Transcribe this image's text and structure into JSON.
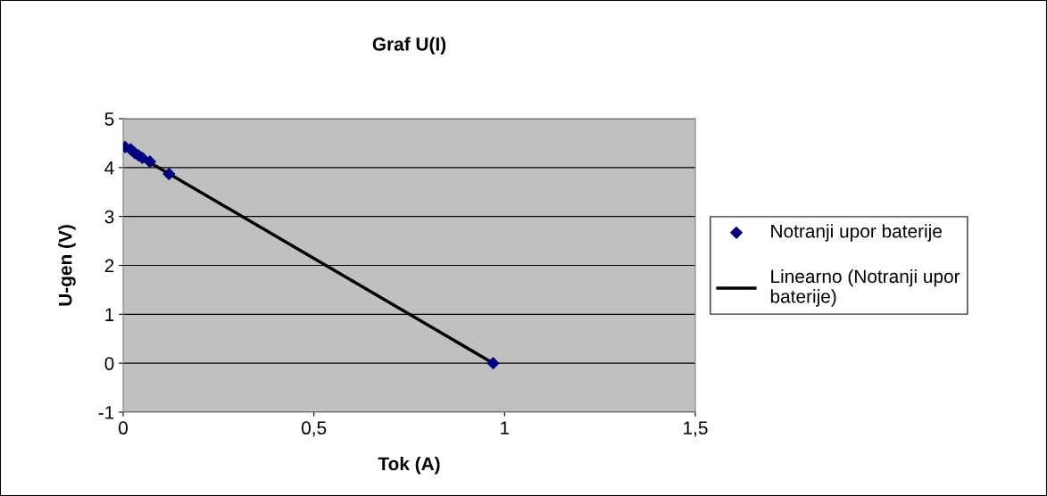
{
  "chart_data": {
    "type": "scatter",
    "title": "Graf U(I)",
    "xlabel": "Tok (A)",
    "ylabel": "U-gen (V)",
    "xlim": [
      0,
      1.5
    ],
    "xticks": [
      0,
      {
        "value": 0.5,
        "label": "0,5"
      },
      1,
      {
        "value": 1.5,
        "label": "1,5"
      }
    ],
    "ylim": [
      -1,
      5
    ],
    "yticks": [
      {
        "value": -1,
        "label": "-1"
      },
      0,
      1,
      2,
      3,
      4,
      5
    ],
    "grid": "y",
    "legend": "right",
    "series": [
      {
        "name": "Notranji upor baterije",
        "marker": "diamond",
        "color": "#000080",
        "x": [
          0.005,
          0.02,
          0.03,
          0.04,
          0.05,
          0.07,
          0.12,
          0.97
        ],
        "values": [
          4.42,
          4.37,
          4.3,
          4.25,
          4.2,
          4.12,
          3.87,
          0
        ]
      },
      {
        "name": "Linearno (Notranji upor baterije)",
        "type": "line",
        "color": "#000000",
        "x": [
          0.005,
          0.97
        ],
        "values": [
          4.4,
          0
        ]
      }
    ]
  }
}
